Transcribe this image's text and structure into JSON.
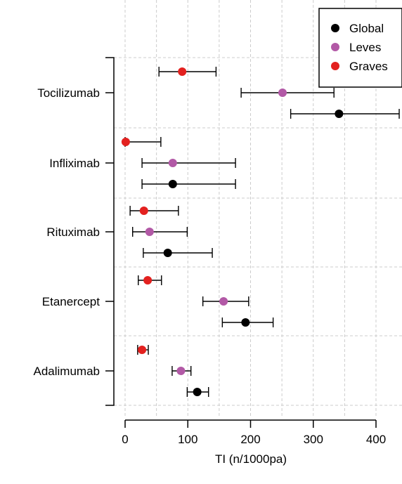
{
  "chart_data": {
    "type": "forest",
    "orientation": "horizontal",
    "xlabel": "TI (n/1000pa)",
    "xlim": [
      0,
      440
    ],
    "xticks": [
      0,
      100,
      200,
      300,
      400
    ],
    "grid": true,
    "legend_position": "top-right",
    "categories": [
      "Tocilizumab",
      "Infliximab",
      "Rituximab",
      "Etanercept",
      "Adalimumab"
    ],
    "series": [
      {
        "name": "Graves",
        "color": "#e3211f",
        "estimates": [
          91,
          1,
          30,
          36,
          27
        ],
        "lower": [
          54,
          0,
          8,
          21,
          20
        ],
        "upper": [
          145,
          57,
          85,
          58,
          37
        ]
      },
      {
        "name": "Leves",
        "color": "#b259a6",
        "estimates": [
          251,
          76,
          39,
          157,
          89
        ],
        "lower": [
          185,
          27,
          12,
          124,
          75
        ],
        "upper": [
          333,
          176,
          99,
          197,
          105
        ]
      },
      {
        "name": "Global",
        "color": "#000000",
        "estimates": [
          341,
          76,
          68,
          192,
          115
        ],
        "lower": [
          264,
          27,
          29,
          155,
          99
        ],
        "upper": [
          437,
          176,
          139,
          236,
          133
        ]
      }
    ],
    "legend": [
      "Global",
      "Leves",
      "Graves"
    ]
  }
}
